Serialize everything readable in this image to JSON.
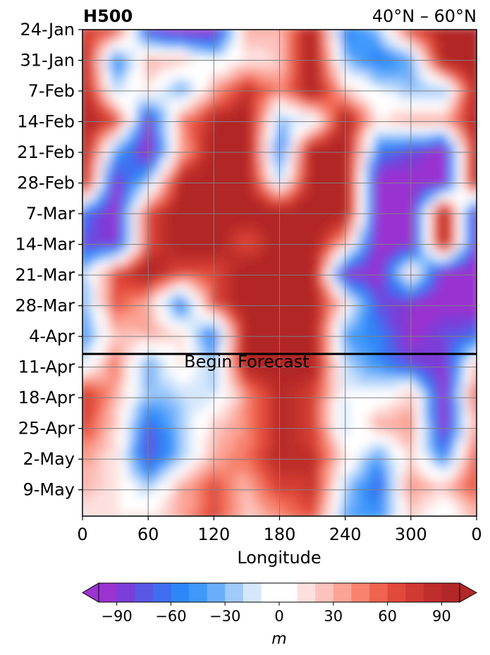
{
  "chart_data": {
    "type": "heatmap",
    "title": "H500",
    "subtitle": "40°N – 60°N",
    "xlabel": "Longitude",
    "ylabel": "",
    "x_ticks": [
      "0",
      "60",
      "120",
      "180",
      "240",
      "300",
      "0"
    ],
    "x_tick_values": [
      0,
      60,
      120,
      180,
      240,
      300,
      360
    ],
    "xlim": [
      0,
      360
    ],
    "y_ticks": [
      "24-Jan",
      "31-Jan",
      "7-Feb",
      "14-Feb",
      "21-Feb",
      "28-Feb",
      "7-Mar",
      "14-Mar",
      "21-Mar",
      "28-Mar",
      "4-Apr",
      "11-Apr",
      "18-Apr",
      "25-Apr",
      "2-May",
      "9-May"
    ],
    "y_inverted": true,
    "grid": true,
    "forecast_line": {
      "label": "Begin Forecast",
      "date": "8-Apr"
    },
    "colorbar": {
      "label": "m",
      "orientation": "horizontal",
      "extend": "both",
      "ticks": [
        "−90",
        "−60",
        "−30",
        "0",
        "30",
        "60",
        "90"
      ],
      "tick_values": [
        -90,
        -60,
        -30,
        0,
        30,
        60,
        90
      ],
      "levels": [
        -100,
        -90,
        -80,
        -70,
        -60,
        -50,
        -40,
        -30,
        -20,
        -10,
        10,
        20,
        30,
        40,
        50,
        60,
        70,
        80,
        90,
        100
      ],
      "colors": [
        "#9a33d2",
        "#7b3ed8",
        "#5a57e6",
        "#3f6ef0",
        "#2f86f6",
        "#3f99fb",
        "#6aaefb",
        "#9fcbfb",
        "#d5e7fb",
        "#ffffff",
        "#fde0de",
        "#fcc3bd",
        "#fba496",
        "#f7836f",
        "#f0634f",
        "#e1493b",
        "#d03a33",
        "#bf2d2c",
        "#b22828"
      ],
      "under_color": "#9a33d2",
      "over_color": "#b22828"
    },
    "field_rows": [
      [
        70,
        70,
        -80,
        -100,
        -100,
        30,
        30,
        100,
        -60,
        -30,
        70,
        90,
        100
      ],
      [
        100,
        -60,
        30,
        20,
        -10,
        10,
        20,
        100,
        -30,
        -60,
        -40,
        100,
        100
      ],
      [
        100,
        -20,
        10,
        -40,
        30,
        80,
        40,
        100,
        20,
        -10,
        -30,
        -30,
        100
      ],
      [
        100,
        70,
        -90,
        40,
        90,
        100,
        -30,
        -10,
        100,
        10,
        30,
        30,
        100
      ],
      [
        100,
        -40,
        -100,
        30,
        100,
        100,
        -60,
        100,
        100,
        -60,
        -80,
        -100,
        100
      ],
      [
        100,
        -90,
        -30,
        90,
        100,
        100,
        -20,
        100,
        100,
        -100,
        -100,
        -100,
        100
      ],
      [
        -60,
        -100,
        60,
        100,
        100,
        100,
        100,
        100,
        100,
        -100,
        -100,
        100,
        -90
      ],
      [
        -80,
        -90,
        60,
        100,
        100,
        60,
        100,
        100,
        30,
        -100,
        -100,
        100,
        -90
      ],
      [
        -30,
        60,
        100,
        60,
        60,
        100,
        100,
        100,
        -90,
        -100,
        10,
        -100,
        -100
      ],
      [
        -40,
        60,
        30,
        -60,
        60,
        100,
        100,
        100,
        10,
        -80,
        -90,
        -100,
        -100
      ],
      [
        -50,
        20,
        30,
        10,
        -60,
        100,
        100,
        100,
        -40,
        -60,
        -100,
        -80,
        -70
      ],
      [
        -20,
        50,
        -40,
        10,
        -30,
        100,
        100,
        100,
        -20,
        -50,
        -80,
        -90,
        20
      ],
      [
        80,
        30,
        -30,
        -20,
        -20,
        40,
        90,
        70,
        -10,
        -10,
        20,
        -100,
        60
      ],
      [
        70,
        20,
        -70,
        -30,
        20,
        40,
        90,
        70,
        -20,
        30,
        40,
        -100,
        40
      ],
      [
        40,
        10,
        -80,
        -30,
        30,
        50,
        90,
        80,
        10,
        -40,
        20,
        -60,
        60
      ],
      [
        30,
        10,
        -30,
        30,
        60,
        30,
        70,
        80,
        -20,
        -70,
        40,
        20,
        60
      ],
      [
        10,
        10,
        10,
        30,
        70,
        20,
        40,
        60,
        -40,
        -50,
        20,
        -10,
        30
      ]
    ]
  }
}
